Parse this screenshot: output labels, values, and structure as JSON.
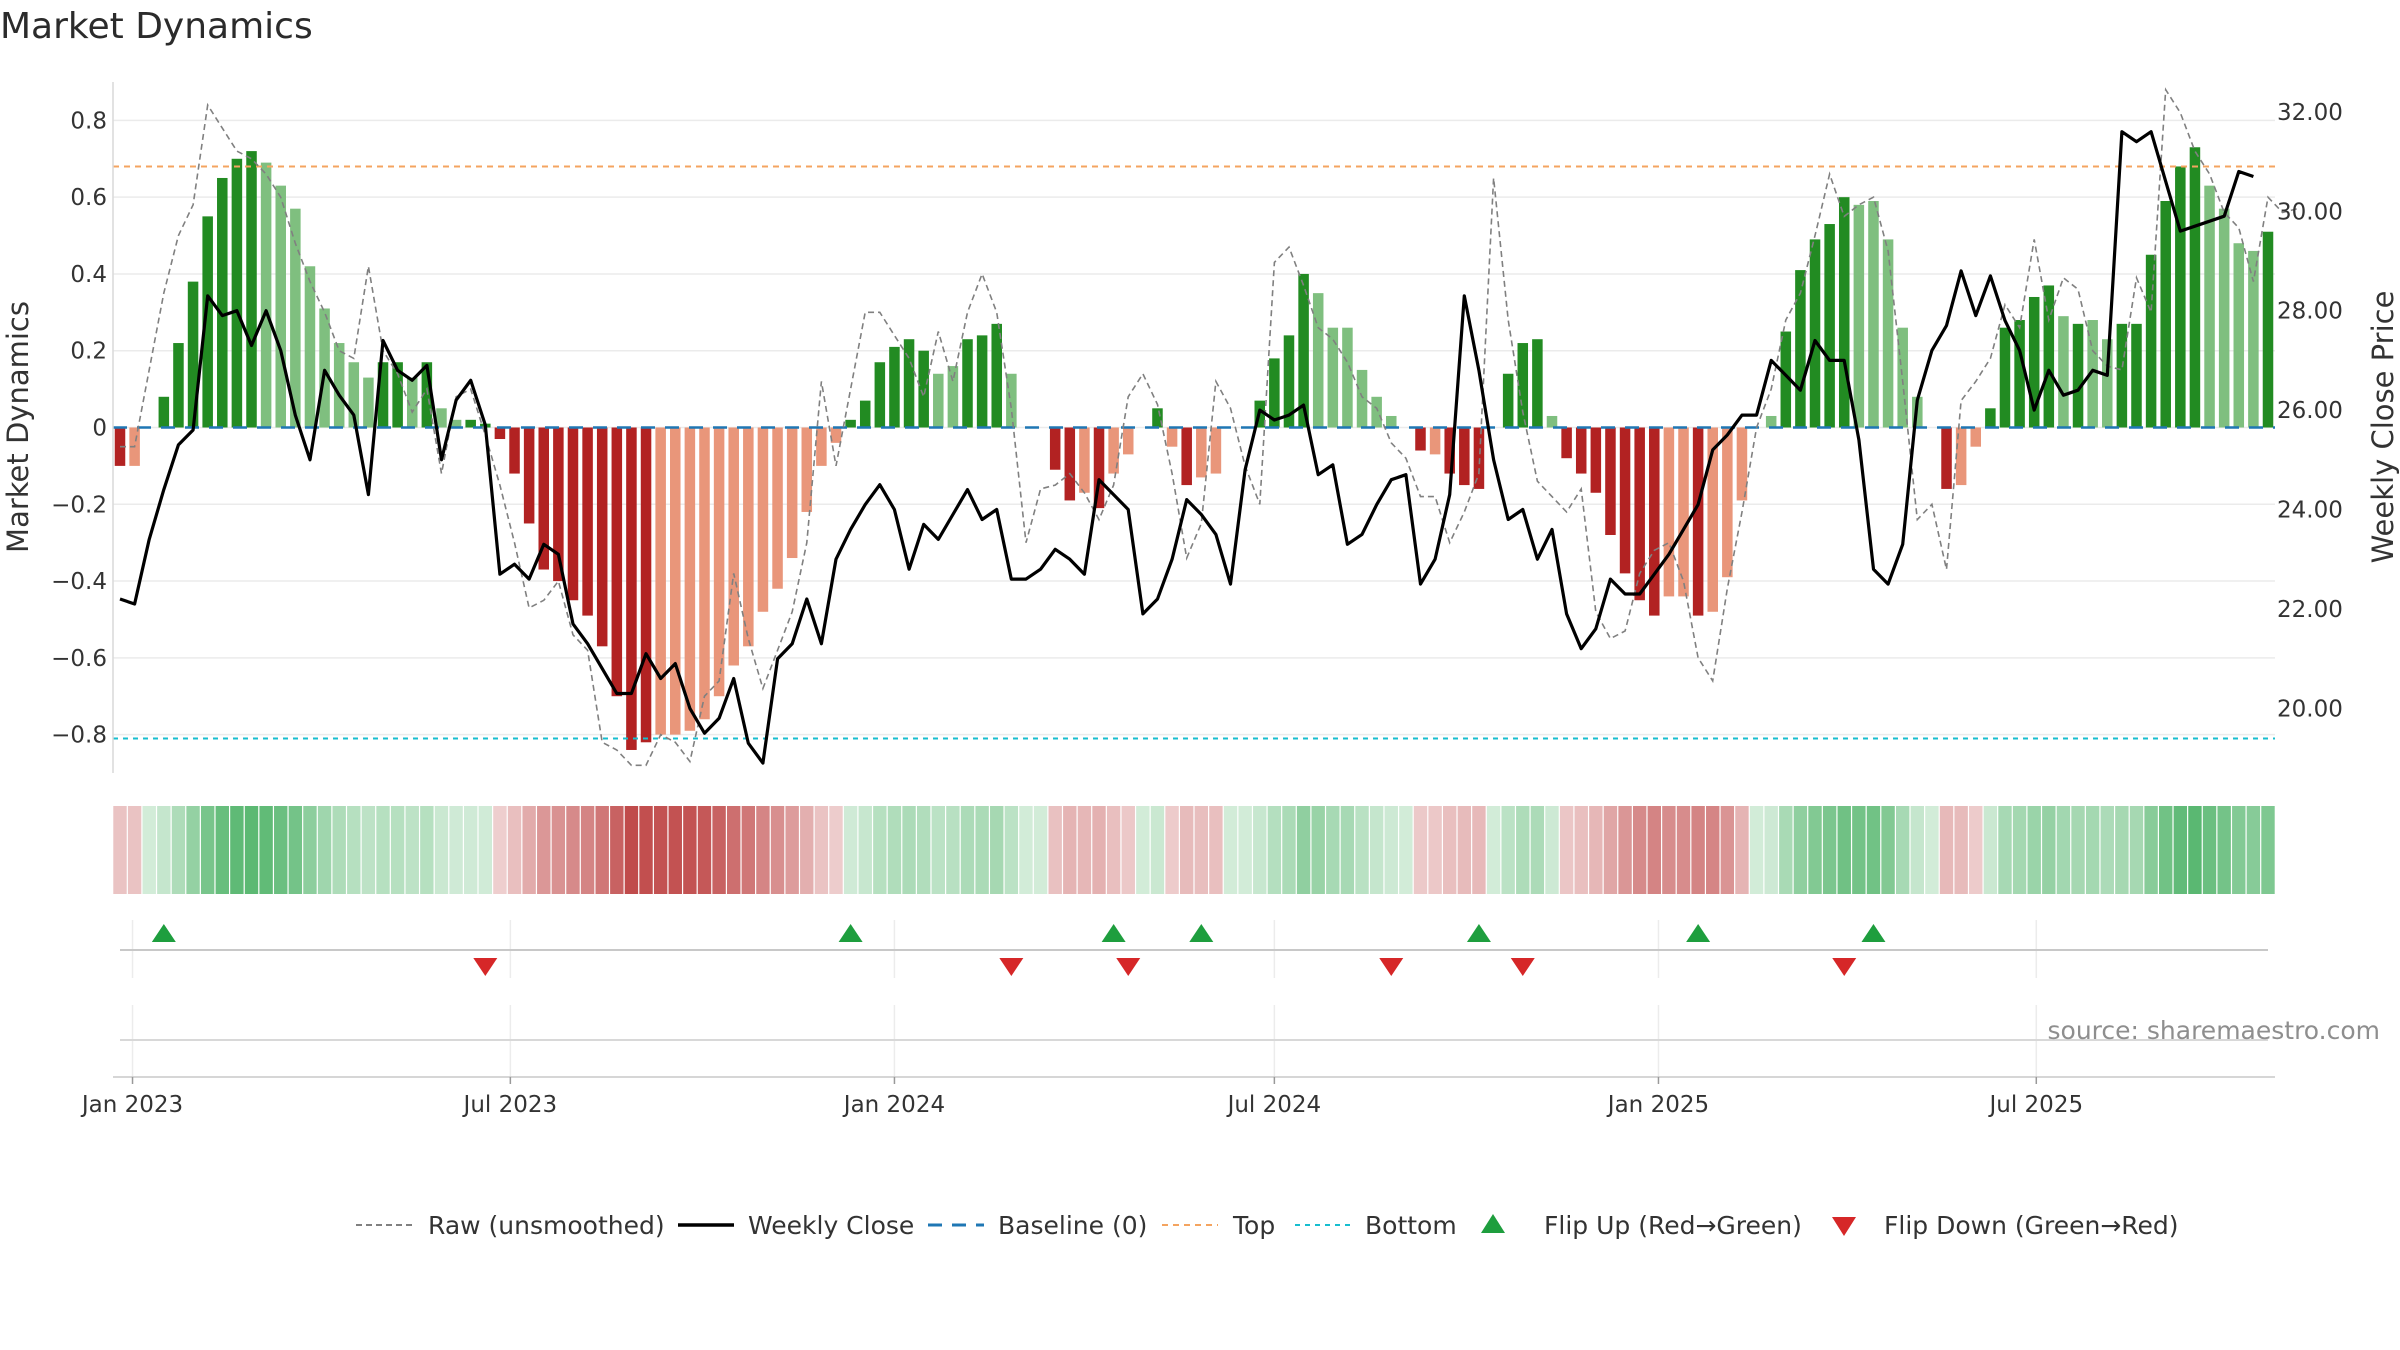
{
  "chart_data": {
    "type": "bar",
    "title": "Market Dynamics",
    "ylabel_left": "Market Dynamics",
    "ylabel_right": "Weekly Close Price",
    "source": "source: sharemaestro.com",
    "ylim_left": [
      -0.9,
      0.9
    ],
    "ylim_right": [
      18.7,
      32.6
    ],
    "yticks_left": [
      -0.8,
      -0.6,
      -0.4,
      -0.2,
      0,
      0.2,
      0.4,
      0.6,
      0.8
    ],
    "ytick_labels_left": [
      "−0.8",
      "−0.6",
      "−0.4",
      "−0.2",
      "0",
      "0.2",
      "0.4",
      "0.6",
      "0.8"
    ],
    "yticks_right": [
      20,
      22,
      24,
      26,
      28,
      30,
      32
    ],
    "ytick_labels_right": [
      "20.00",
      "22.00",
      "24.00",
      "26.00",
      "28.00",
      "30.00",
      "32.00"
    ],
    "x_start": "2022-12-26",
    "x_interval_days": 7,
    "x_ticks": [
      {
        "date": "2023-01-01",
        "label": "Jan 2023"
      },
      {
        "date": "2023-07-01",
        "label": "Jul 2023"
      },
      {
        "date": "2024-01-01",
        "label": "Jan 2024"
      },
      {
        "date": "2024-07-01",
        "label": "Jul 2024"
      },
      {
        "date": "2025-01-01",
        "label": "Jan 2025"
      },
      {
        "date": "2025-07-01",
        "label": "Jul 2025"
      }
    ],
    "top_threshold": 0.68,
    "bottom_threshold": -0.81,
    "baseline": 0,
    "grid": true,
    "legend_position": "bottom",
    "legend": [
      "Raw (unsmoothed)",
      "Weekly Close",
      "Baseline (0)",
      "Top",
      "Bottom",
      "Flip Up (Red→Green)",
      "Flip Down (Green→Red)"
    ],
    "colors": {
      "pos_strong": "#228b22",
      "pos_weak": "#7fbf7f",
      "neg_strong": "#b22222",
      "neg_weak": "#e9967a",
      "raw": "#808080",
      "close": "#000000",
      "baseline": "#1f77b4",
      "top": "#f4a460",
      "bottom": "#17becf",
      "flip_up": "#1e9e3e",
      "flip_down": "#d62728"
    },
    "series": [
      {
        "name": "Market Dynamics",
        "type": "bar",
        "values": [
          -0.1,
          -0.1,
          0,
          0.08,
          0.22,
          0.38,
          0.55,
          0.65,
          0.7,
          0.72,
          0.69,
          0.63,
          0.57,
          0.42,
          0.31,
          0.22,
          0.17,
          0.13,
          0.17,
          0.17,
          0.13,
          0.17,
          0.05,
          0.02,
          0.02,
          0.01,
          -0.03,
          -0.12,
          -0.25,
          -0.37,
          -0.4,
          -0.45,
          -0.49,
          -0.57,
          -0.7,
          -0.84,
          -0.82,
          -0.8,
          -0.8,
          -0.79,
          -0.76,
          -0.7,
          -0.62,
          -0.57,
          -0.48,
          -0.42,
          -0.34,
          -0.22,
          -0.1,
          -0.04,
          0.02,
          0.07,
          0.17,
          0.21,
          0.23,
          0.2,
          0.14,
          0.16,
          0.23,
          0.24,
          0.27,
          0.14,
          0,
          0,
          -0.11,
          -0.19,
          -0.17,
          -0.21,
          -0.12,
          -0.07,
          0,
          0.05,
          -0.05,
          -0.15,
          -0.13,
          -0.12,
          0,
          0,
          0.07,
          0.18,
          0.24,
          0.4,
          0.35,
          0.26,
          0.26,
          0.15,
          0.08,
          0.03,
          0,
          -0.06,
          -0.07,
          -0.12,
          -0.15,
          -0.16,
          0,
          0.14,
          0.22,
          0.23,
          0.03,
          -0.08,
          -0.12,
          -0.17,
          -0.28,
          -0.38,
          -0.45,
          -0.49,
          -0.44,
          -0.44,
          -0.49,
          -0.48,
          -0.39,
          -0.19,
          0,
          0.03,
          0.25,
          0.41,
          0.49,
          0.53,
          0.6,
          0.58,
          0.59,
          0.49,
          0.26,
          0.08,
          0,
          -0.16,
          -0.15,
          -0.05,
          0.05,
          0.26,
          0.28,
          0.34,
          0.37,
          0.29,
          0.27,
          0.28,
          0.23,
          0.27,
          0.27,
          0.45,
          0.59,
          0.68,
          0.73,
          0.63,
          0.57,
          0.48,
          0.46,
          0.51
        ],
        "strength": [
          1,
          0,
          0,
          1,
          1,
          1,
          1,
          1,
          1,
          1,
          0,
          0,
          0,
          0,
          0,
          0,
          0,
          0,
          1,
          1,
          0,
          1,
          0,
          0,
          1,
          1,
          1,
          1,
          1,
          1,
          1,
          1,
          1,
          1,
          1,
          1,
          1,
          0,
          0,
          0,
          0,
          0,
          0,
          0,
          0,
          0,
          0,
          0,
          0,
          0,
          1,
          1,
          1,
          1,
          1,
          1,
          0,
          0,
          1,
          1,
          1,
          0,
          0,
          0,
          1,
          1,
          0,
          1,
          0,
          0,
          0,
          1,
          0,
          1,
          0,
          0,
          0,
          0,
          1,
          1,
          1,
          1,
          0,
          0,
          0,
          0,
          0,
          0,
          0,
          1,
          0,
          1,
          1,
          1,
          0,
          1,
          1,
          1,
          0,
          1,
          1,
          1,
          1,
          1,
          1,
          1,
          0,
          0,
          1,
          0,
          0,
          0,
          0,
          0,
          1,
          1,
          1,
          1,
          1,
          0,
          0,
          0,
          0,
          0,
          0,
          1,
          0,
          0,
          1,
          1,
          1,
          1,
          1,
          0,
          1,
          0,
          0,
          1,
          1,
          1,
          1,
          1,
          1,
          0,
          0,
          0,
          0,
          1
        ]
      },
      {
        "name": "Raw (unsmoothed)",
        "type": "line",
        "values": [
          -0.05,
          -0.05,
          0.15,
          0.35,
          0.5,
          0.58,
          0.84,
          0.78,
          0.72,
          0.7,
          0.66,
          0.6,
          0.48,
          0.38,
          0.3,
          0.2,
          0.18,
          0.42,
          0.2,
          0.14,
          0.04,
          0.1,
          -0.12,
          0.08,
          0.1,
          -0.02,
          -0.15,
          -0.3,
          -0.47,
          -0.45,
          -0.4,
          -0.54,
          -0.58,
          -0.82,
          -0.84,
          -0.88,
          -0.88,
          -0.8,
          -0.82,
          -0.87,
          -0.7,
          -0.66,
          -0.38,
          -0.55,
          -0.68,
          -0.58,
          -0.48,
          -0.3,
          0.12,
          -0.1,
          0.1,
          0.3,
          0.3,
          0.24,
          0.18,
          0.08,
          0.25,
          0.12,
          0.3,
          0.4,
          0.3,
          0.05,
          -0.3,
          -0.16,
          -0.15,
          -0.12,
          -0.17,
          -0.24,
          -0.15,
          0.08,
          0.14,
          0.06,
          -0.12,
          -0.34,
          -0.25,
          0.12,
          0.05,
          -0.1,
          -0.2,
          0.43,
          0.47,
          0.37,
          0.26,
          0.23,
          0.17,
          0.08,
          0.05,
          -0.04,
          -0.08,
          -0.18,
          -0.18,
          -0.3,
          -0.22,
          -0.12,
          0.65,
          0.28,
          0.04,
          -0.14,
          -0.18,
          -0.22,
          -0.16,
          -0.48,
          -0.55,
          -0.53,
          -0.38,
          -0.32,
          -0.3,
          -0.4,
          -0.6,
          -0.66,
          -0.42,
          -0.22,
          0,
          0.1,
          0.28,
          0.35,
          0.5,
          0.66,
          0.55,
          0.58,
          0.6,
          0.46,
          0.12,
          -0.24,
          -0.2,
          -0.37,
          0.07,
          0.12,
          0.18,
          0.32,
          0.26,
          0.49,
          0.28,
          0.39,
          0.36,
          0.2,
          0.16,
          0.15,
          0.39,
          0.3,
          0.88,
          0.82,
          0.72,
          0.66,
          0.56,
          0.52,
          0.38,
          0.6,
          0.56,
          0.57
        ]
      },
      {
        "name": "Weekly Close",
        "type": "line",
        "axis": "right",
        "values": [
          22.2,
          22.1,
          23.4,
          24.4,
          25.3,
          25.6,
          28.3,
          27.9,
          28.0,
          27.3,
          28.0,
          27.2,
          25.9,
          25.0,
          26.8,
          26.3,
          25.9,
          24.3,
          27.4,
          26.8,
          26.6,
          26.9,
          25.0,
          26.2,
          26.6,
          25.7,
          22.7,
          22.9,
          22.6,
          23.3,
          23.1,
          21.7,
          21.3,
          20.8,
          20.3,
          20.3,
          21.1,
          20.6,
          20.9,
          20.0,
          19.5,
          19.8,
          20.6,
          19.3,
          18.9,
          21.0,
          21.3,
          22.2,
          21.3,
          23.0,
          23.6,
          24.1,
          24.5,
          24.0,
          22.8,
          23.7,
          23.4,
          23.9,
          24.4,
          23.8,
          24.0,
          22.6,
          22.6,
          22.8,
          23.2,
          23.0,
          22.7,
          24.6,
          24.3,
          24.0,
          21.9,
          22.2,
          23.0,
          24.2,
          23.9,
          23.5,
          22.5,
          24.8,
          26.0,
          25.8,
          25.9,
          26.1,
          24.7,
          24.9,
          23.3,
          23.5,
          24.1,
          24.6,
          24.7,
          22.5,
          23.0,
          24.3,
          28.3,
          26.8,
          25.0,
          23.8,
          24.0,
          23.0,
          23.6,
          21.9,
          21.2,
          21.6,
          22.6,
          22.3,
          22.3,
          22.7,
          23.1,
          23.6,
          24.1,
          25.2,
          25.5,
          25.9,
          25.9,
          27.0,
          26.7,
          26.4,
          27.4,
          27.0,
          27.0,
          25.4,
          22.8,
          22.5,
          23.3,
          26.2,
          27.2,
          27.7,
          28.8,
          27.9,
          28.7,
          27.8,
          27.2,
          26.0,
          26.8,
          26.3,
          26.4,
          26.8,
          26.7,
          31.6,
          31.4,
          31.6,
          30.6,
          29.6,
          29.7,
          29.8,
          29.9,
          30.8,
          30.7
        ]
      }
    ],
    "flip_up": [
      "2023-01-16",
      "2023-12-11",
      "2024-04-15",
      "2024-05-27",
      "2024-10-07",
      "2025-01-20",
      "2025-04-14"
    ],
    "flip_down": [
      "2023-06-19",
      "2024-02-26",
      "2024-04-22",
      "2024-08-26",
      "2024-10-28",
      "2025-03-31"
    ]
  }
}
